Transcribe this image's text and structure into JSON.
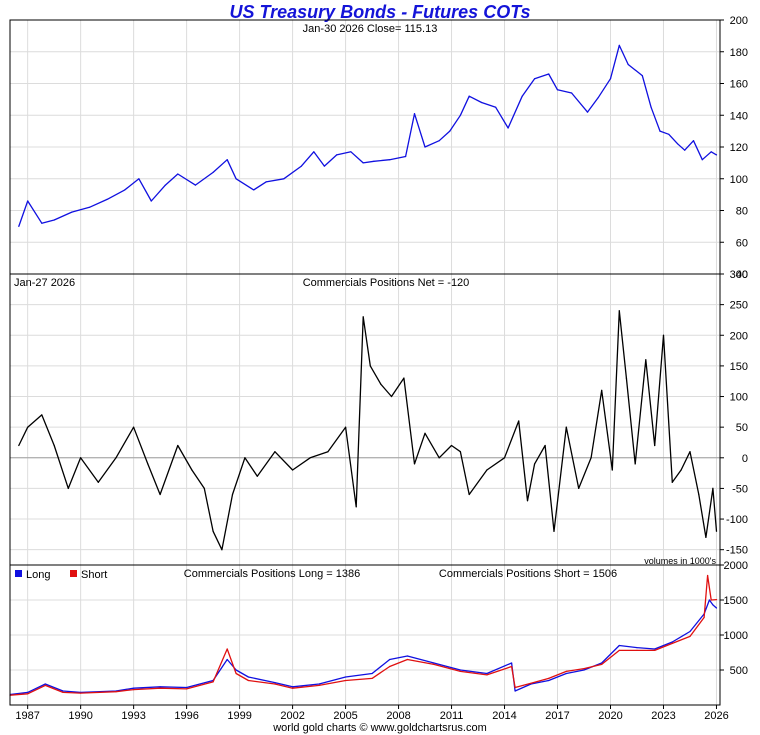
{
  "title": "US Treasury Bonds - Futures COTs",
  "footer": "world gold charts © www.goldchartsrus.com",
  "colors": {
    "title": "#1414d8",
    "price": "#1010e0",
    "net": "#000000",
    "long": "#1010e0",
    "short": "#e01010",
    "grid": "#dcdcdc",
    "frame": "#000000"
  },
  "chart_data": [
    {
      "panel": "price",
      "type": "line",
      "title": "Jan-30  2026   Close= 115.13",
      "ylim": [
        40,
        200
      ],
      "yticks": [
        40,
        60,
        80,
        100,
        120,
        140,
        160,
        180,
        200
      ],
      "series": [
        {
          "name": "US Treasury Bonds Futures",
          "x": [
            1986.5,
            1987.0,
            1987.8,
            1988.5,
            1989.5,
            1990.5,
            1991.5,
            1992.5,
            1993.3,
            1994.0,
            1994.8,
            1995.5,
            1996.5,
            1997.5,
            1998.3,
            1998.8,
            1999.8,
            2000.5,
            2001.5,
            2002.5,
            2003.2,
            2003.8,
            2004.5,
            2005.3,
            2006.0,
            2006.6,
            2007.5,
            2008.4,
            2008.9,
            2009.5,
            2010.3,
            2010.9,
            2011.5,
            2012.0,
            2012.7,
            2013.5,
            2014.2,
            2015.0,
            2015.7,
            2016.5,
            2017.0,
            2017.8,
            2018.7,
            2019.3,
            2020.0,
            2020.5,
            2021.0,
            2021.8,
            2022.3,
            2022.8,
            2023.3,
            2023.8,
            2024.2,
            2024.7,
            2025.2,
            2025.7,
            2026.0
          ],
          "values": [
            70,
            86,
            72,
            74,
            79,
            82,
            87,
            93,
            100,
            86,
            96,
            103,
            96,
            104,
            112,
            100,
            93,
            98,
            100,
            108,
            117,
            108,
            115,
            117,
            110,
            111,
            112,
            114,
            141,
            120,
            124,
            130,
            140,
            152,
            148,
            145,
            132,
            152,
            163,
            166,
            156,
            154,
            142,
            151,
            163,
            184,
            172,
            165,
            145,
            130,
            128,
            122,
            118,
            124,
            112,
            117,
            115
          ]
        }
      ]
    },
    {
      "panel": "net",
      "type": "line",
      "title": "Commercials Positions Net = -120",
      "date_label": "Jan-27  2026",
      "note": "volumes in 1000's",
      "ylim": [
        -175,
        300
      ],
      "yticks": [
        -150,
        -100,
        -50,
        0,
        50,
        100,
        150,
        200,
        250,
        300
      ],
      "series": [
        {
          "name": "Commercials Positions Net",
          "x": [
            1986.5,
            1987.0,
            1987.8,
            1988.5,
            1989.3,
            1990.0,
            1991.0,
            1992.0,
            1993.0,
            1993.8,
            1994.5,
            1995.5,
            1996.3,
            1997.0,
            1997.5,
            1998.0,
            1998.6,
            1999.3,
            2000.0,
            2001.0,
            2002.0,
            2003.0,
            2004.0,
            2005.0,
            2005.6,
            2006.0,
            2006.4,
            2007.0,
            2007.6,
            2008.3,
            2008.9,
            2009.5,
            2010.3,
            2011.0,
            2011.5,
            2012.0,
            2013.0,
            2014.0,
            2014.8,
            2015.3,
            2015.7,
            2016.3,
            2016.8,
            2017.5,
            2018.2,
            2018.9,
            2019.5,
            2020.1,
            2020.5,
            2020.9,
            2021.4,
            2022.0,
            2022.5,
            2023.0,
            2023.5,
            2024.0,
            2024.5,
            2025.0,
            2025.4,
            2025.8,
            2026.0
          ],
          "values": [
            20,
            50,
            70,
            20,
            -50,
            0,
            -40,
            0,
            50,
            -10,
            -60,
            20,
            -20,
            -50,
            -120,
            -150,
            -60,
            0,
            -30,
            10,
            -20,
            0,
            10,
            50,
            -80,
            230,
            150,
            120,
            100,
            130,
            -10,
            40,
            0,
            20,
            10,
            -60,
            -20,
            0,
            60,
            -70,
            -10,
            20,
            -120,
            50,
            -50,
            0,
            110,
            -20,
            240,
            130,
            -10,
            160,
            20,
            200,
            -40,
            -20,
            10,
            -60,
            -130,
            -50,
            -120
          ]
        }
      ]
    },
    {
      "panel": "positions",
      "type": "line",
      "long_label": "Commercials Positions Long = 1386",
      "short_label": "Commercials Positions Short = 1506",
      "legend": [
        "Long",
        "Short"
      ],
      "ylim": [
        0,
        2000
      ],
      "yticks": [
        500,
        1000,
        1500,
        2000
      ],
      "xlim": [
        1986.0,
        2026.2
      ],
      "xticks": [
        1987,
        1990,
        1993,
        1996,
        1999,
        2002,
        2005,
        2008,
        2011,
        2014,
        2017,
        2020,
        2023,
        2026
      ],
      "series": [
        {
          "name": "Long",
          "x": [
            1986.0,
            1987.0,
            1988.0,
            1989.0,
            1990.0,
            1992.0,
            1993.0,
            1994.5,
            1996.0,
            1997.5,
            1998.3,
            1998.8,
            1999.5,
            2001.0,
            2002.0,
            2003.5,
            2005.0,
            2006.5,
            2007.5,
            2008.5,
            2010.0,
            2011.5,
            2013.0,
            2014.4,
            2014.6,
            2015.5,
            2016.5,
            2017.5,
            2018.5,
            2019.5,
            2020.5,
            2021.5,
            2022.5,
            2023.5,
            2024.5,
            2025.3,
            2025.6,
            2025.8,
            2026.0
          ],
          "values": [
            150,
            180,
            300,
            200,
            180,
            200,
            240,
            260,
            250,
            350,
            650,
            500,
            400,
            320,
            260,
            300,
            400,
            450,
            650,
            700,
            600,
            500,
            450,
            600,
            200,
            300,
            350,
            450,
            500,
            600,
            850,
            820,
            800,
            900,
            1050,
            1300,
            1500,
            1430,
            1386
          ]
        },
        {
          "name": "Short",
          "x": [
            1986.0,
            1987.0,
            1988.0,
            1989.0,
            1990.0,
            1992.0,
            1993.0,
            1994.5,
            1996.0,
            1997.5,
            1998.3,
            1998.8,
            1999.5,
            2001.0,
            2002.0,
            2003.5,
            2005.0,
            2006.5,
            2007.5,
            2008.5,
            2010.0,
            2011.5,
            2013.0,
            2014.4,
            2014.6,
            2015.5,
            2016.5,
            2017.5,
            2018.5,
            2019.5,
            2020.5,
            2021.5,
            2022.5,
            2023.5,
            2024.5,
            2025.3,
            2025.5,
            2025.7,
            2026.0
          ],
          "values": [
            140,
            160,
            280,
            180,
            170,
            190,
            220,
            240,
            230,
            330,
            800,
            450,
            350,
            300,
            240,
            280,
            350,
            380,
            550,
            650,
            580,
            480,
            430,
            550,
            250,
            310,
            380,
            480,
            520,
            580,
            780,
            780,
            780,
            880,
            980,
            1250,
            1850,
            1500,
            1506
          ]
        }
      ]
    }
  ]
}
